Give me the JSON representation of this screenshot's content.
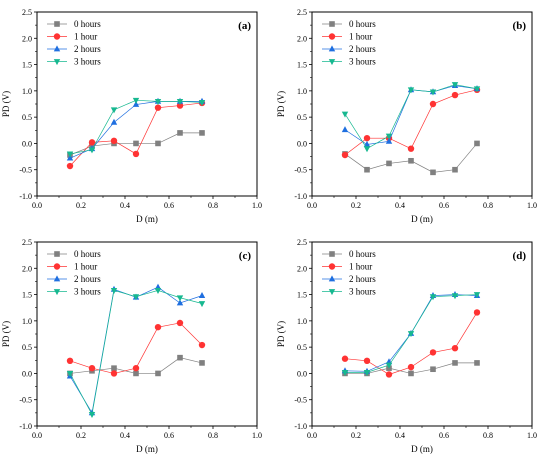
{
  "figure": {
    "series_styles": [
      {
        "color": "#808080",
        "marker": "square"
      },
      {
        "color": "#ff3333",
        "marker": "circle"
      },
      {
        "color": "#1f6fe0",
        "marker": "triangle-up"
      },
      {
        "color": "#17b890",
        "marker": "triangle-down"
      }
    ]
  },
  "chart_data": [
    {
      "type": "line",
      "panel_label": "(a)",
      "xlabel": "D (m)",
      "ylabel": "PD (V)",
      "xlim": [
        0.0,
        1.0
      ],
      "ylim": [
        -1.0,
        2.5
      ],
      "xticks": [
        "0.0",
        "0.2",
        "0.4",
        "0.6",
        "0.8",
        "1.0"
      ],
      "yticks": [
        "-1.0",
        "-0.5",
        "0.0",
        "0.5",
        "1.0",
        "1.5",
        "2.0",
        "2.5"
      ],
      "legend_position": "top-left",
      "x": [
        0.15,
        0.25,
        0.35,
        0.45,
        0.55,
        0.65,
        0.75
      ],
      "series": [
        {
          "name": "0 hours",
          "values": [
            -0.22,
            -0.05,
            0.0,
            0.0,
            0.0,
            0.2,
            0.2
          ]
        },
        {
          "name": "1 hour",
          "values": [
            -0.43,
            0.02,
            0.05,
            -0.2,
            0.68,
            0.72,
            0.77
          ]
        },
        {
          "name": "2 hours",
          "values": [
            -0.28,
            -0.1,
            0.4,
            0.74,
            0.8,
            0.8,
            0.8
          ]
        },
        {
          "name": "3 hours",
          "values": [
            -0.2,
            -0.12,
            0.64,
            0.82,
            0.8,
            0.8,
            0.78
          ]
        }
      ]
    },
    {
      "type": "line",
      "panel_label": "(b)",
      "xlabel": "D (m)",
      "ylabel": "PD (V)",
      "xlim": [
        0.0,
        1.0
      ],
      "ylim": [
        -1.0,
        2.5
      ],
      "xticks": [
        "0.0",
        "0.2",
        "0.4",
        "0.6",
        "0.8",
        "1.0"
      ],
      "yticks": [
        "-1.0",
        "-0.5",
        "0.0",
        "0.5",
        "1.0",
        "1.5",
        "2.0",
        "2.5"
      ],
      "legend_position": "top-left",
      "x": [
        0.15,
        0.25,
        0.35,
        0.45,
        0.55,
        0.65,
        0.75
      ],
      "series": [
        {
          "name": "0 hours",
          "values": [
            -0.2,
            -0.5,
            -0.38,
            -0.33,
            -0.55,
            -0.5,
            0.0
          ]
        },
        {
          "name": "1 hour",
          "values": [
            -0.22,
            0.1,
            0.1,
            -0.1,
            0.75,
            0.92,
            1.02
          ]
        },
        {
          "name": "2 hours",
          "values": [
            0.26,
            -0.02,
            0.04,
            1.02,
            0.98,
            1.1,
            1.04
          ]
        },
        {
          "name": "3 hours",
          "values": [
            0.56,
            -0.1,
            0.14,
            1.02,
            0.98,
            1.12,
            1.04
          ]
        }
      ]
    },
    {
      "type": "line",
      "panel_label": "(c)",
      "xlabel": "D (m)",
      "ylabel": "PD (V)",
      "xlim": [
        0.0,
        1.0
      ],
      "ylim": [
        -1.0,
        2.5
      ],
      "xticks": [
        "0.0",
        "0.2",
        "0.4",
        "0.6",
        "0.8",
        "1.0"
      ],
      "yticks": [
        "-1.0",
        "-0.5",
        "0.0",
        "0.5",
        "1.0",
        "1.5",
        "2.0",
        "2.5"
      ],
      "legend_position": "top-left",
      "x": [
        0.15,
        0.25,
        0.35,
        0.45,
        0.55,
        0.65,
        0.75
      ],
      "series": [
        {
          "name": "0 hours",
          "values": [
            0.0,
            0.05,
            0.1,
            0.0,
            0.0,
            0.3,
            0.2
          ]
        },
        {
          "name": "1 hour",
          "values": [
            0.24,
            0.1,
            0.0,
            0.1,
            0.88,
            0.96,
            0.54
          ]
        },
        {
          "name": "2 hours",
          "values": [
            -0.05,
            -0.75,
            1.6,
            1.45,
            1.64,
            1.34,
            1.48
          ]
        },
        {
          "name": "3 hours",
          "values": [
            0.0,
            -0.78,
            1.58,
            1.46,
            1.58,
            1.44,
            1.33
          ]
        }
      ]
    },
    {
      "type": "line",
      "panel_label": "(d)",
      "xlabel": "D (m)",
      "ylabel": "PD (V)",
      "xlim": [
        0.0,
        1.0
      ],
      "ylim": [
        -1.0,
        2.5
      ],
      "xticks": [
        "0.0",
        "0.2",
        "0.4",
        "0.6",
        "0.8",
        "1.0"
      ],
      "yticks": [
        "-1.0",
        "-0.5",
        "0.0",
        "0.5",
        "1.0",
        "1.5",
        "2.0",
        "2.5"
      ],
      "legend_position": "top-left",
      "x": [
        0.15,
        0.25,
        0.35,
        0.45,
        0.55,
        0.65,
        0.75
      ],
      "series": [
        {
          "name": "0 hours",
          "values": [
            0.0,
            0.0,
            0.1,
            0.0,
            0.08,
            0.2,
            0.2
          ]
        },
        {
          "name": "1 hour",
          "values": [
            0.28,
            0.24,
            -0.02,
            0.12,
            0.4,
            0.48,
            1.16
          ]
        },
        {
          "name": "2 hours",
          "values": [
            0.05,
            0.04,
            0.22,
            0.76,
            1.48,
            1.5,
            1.48
          ]
        },
        {
          "name": "3 hours",
          "values": [
            0.02,
            0.02,
            0.16,
            0.76,
            1.46,
            1.48,
            1.5
          ]
        }
      ]
    }
  ]
}
